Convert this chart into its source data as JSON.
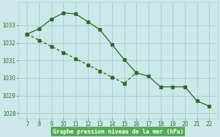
{
  "x": [
    7,
    8,
    9,
    10,
    11,
    12,
    13,
    14,
    15,
    16,
    17,
    18,
    19,
    20,
    21,
    22
  ],
  "y_upper": [
    1032.5,
    1032.8,
    1033.35,
    1033.7,
    1033.65,
    1033.2,
    1032.75,
    1031.9,
    1031.05,
    1030.3,
    1030.1,
    1029.5,
    1029.5,
    1029.5,
    1028.7,
    1028.4
  ],
  "y_lower": [
    1032.5,
    1032.15,
    1031.8,
    1031.45,
    1031.1,
    1030.75,
    1030.4,
    1030.05,
    1029.7,
    1030.3,
    1030.1,
    1029.5,
    1029.5,
    1029.5,
    1028.7,
    1028.4
  ],
  "line_color": "#2d6a2d",
  "bg_color": "#cce8e8",
  "grid_color": "#aacece",
  "xlabel": "Graphe pression niveau de la mer (hPa)",
  "xlabel_color": "#1a4d1a",
  "xlabel_bg": "#55aa55",
  "ylim": [
    1027.7,
    1034.3
  ],
  "yticks": [
    1028,
    1029,
    1030,
    1031,
    1032,
    1033
  ],
  "xticks": [
    7,
    8,
    9,
    10,
    11,
    12,
    13,
    14,
    15,
    16,
    17,
    18,
    19,
    20,
    21,
    22
  ],
  "figsize": [
    3.2,
    2.0
  ],
  "dpi": 100
}
